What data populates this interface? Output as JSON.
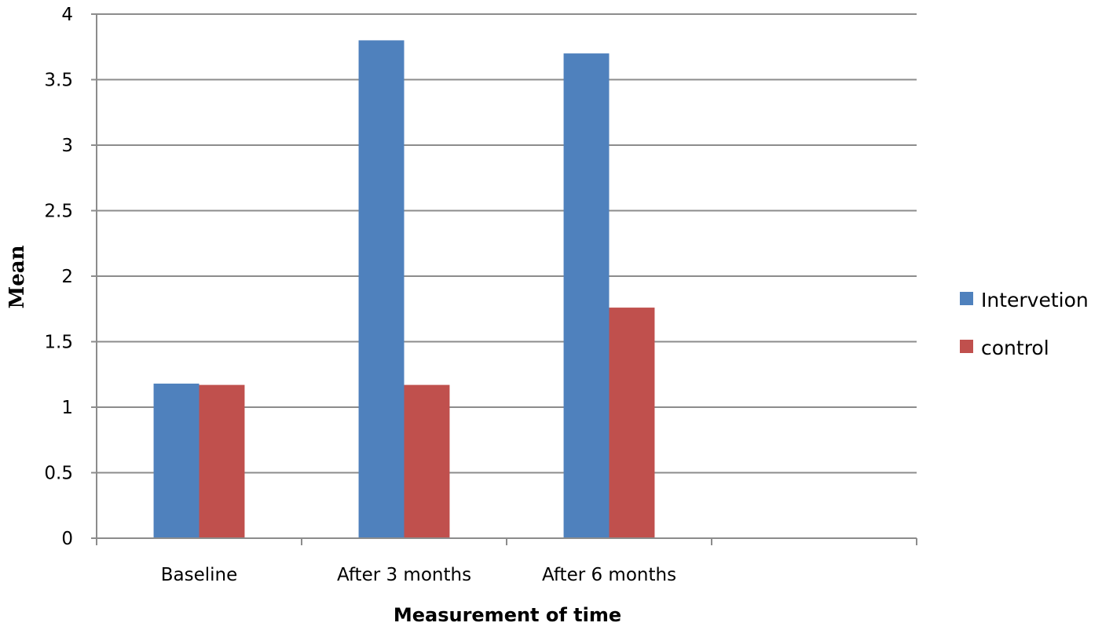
{
  "chart_data": {
    "type": "bar",
    "categories": [
      "Baseline",
      "After 3 months",
      "After 6 months",
      ""
    ],
    "series": [
      {
        "name": "Intervetion",
        "values": [
          1.18,
          3.8,
          3.7,
          null
        ],
        "color": "#4F81BD"
      },
      {
        "name": "control",
        "values": [
          1.17,
          1.17,
          1.76,
          null
        ],
        "color": "#C0504D"
      }
    ],
    "title": "",
    "xlabel": "Measurement of time",
    "ylabel": "Mean",
    "ylim": [
      0,
      4
    ],
    "yticks": [
      "0",
      "0.5",
      "1",
      "1.5",
      "2",
      "2.5",
      "3",
      "3.5",
      "4"
    ],
    "grid": true,
    "legend_position": "right"
  }
}
